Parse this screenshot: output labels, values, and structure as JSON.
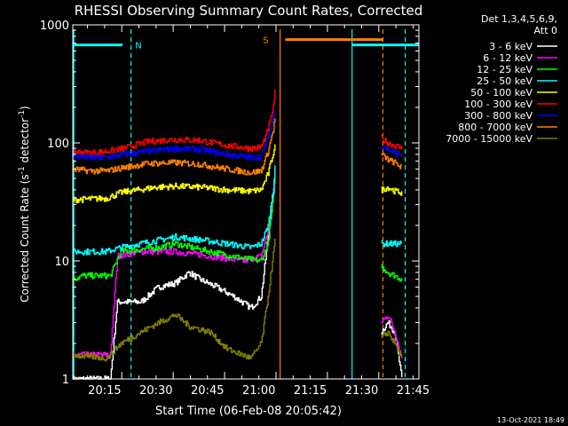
{
  "chart_data": {
    "type": "line",
    "title": "RHESSI Observing Summary Count Rates, Corrected",
    "xlabel": "Start Time (06-Feb-08 20:05:42)",
    "ylabel_main": "Corrected Count Rate (s",
    "ylabel_sup1": "-1",
    "ylabel_mid": " detector",
    "ylabel_sup2": "-1",
    "ylabel_end": ")",
    "yscale": "log",
    "ylim": [
      1,
      1000
    ],
    "y_ticks": [
      {
        "value": 1,
        "label": "1"
      },
      {
        "value": 10,
        "label": "10"
      },
      {
        "value": 100,
        "label": "100"
      },
      {
        "value": 1000,
        "label": "1000"
      }
    ],
    "xlim_minutes": [
      0,
      101
    ],
    "x_ticks": [
      {
        "minute": 9.3,
        "label": "20:15"
      },
      {
        "minute": 24.3,
        "label": "20:30"
      },
      {
        "minute": 39.3,
        "label": "20:45"
      },
      {
        "minute": 54.3,
        "label": "21:00"
      },
      {
        "minute": 69.3,
        "label": "21:15"
      },
      {
        "minute": 84.3,
        "label": "21:30"
      },
      {
        "minute": 99.3,
        "label": "21:45"
      }
    ],
    "legend_header": [
      "Det 1,3,4,5,6,9,",
      "Att 0"
    ],
    "legend_position": "right",
    "series": [
      {
        "name": "3 - 6 keV",
        "color": "#ffffff",
        "segments": [
          [
            [
              0,
              1
            ],
            [
              11,
              1
            ],
            [
              13,
              4.5
            ],
            [
              20,
              4.5
            ],
            [
              25,
              6
            ],
            [
              30,
              6.5
            ],
            [
              34,
              8
            ],
            [
              37,
              7
            ],
            [
              42,
              6
            ],
            [
              47,
              5
            ],
            [
              52,
              4
            ],
            [
              55,
              5
            ],
            [
              56.5,
              12
            ],
            [
              58,
              30
            ],
            [
              59,
              50
            ]
          ],
          [
            [
              90,
              2.5
            ],
            [
              92,
              3
            ],
            [
              94,
              2.5
            ],
            [
              96,
              1
            ]
          ]
        ]
      },
      {
        "name": "6 - 12 keV",
        "color": "#ff00ff",
        "segments": [
          [
            [
              0,
              1.6
            ],
            [
              11,
              1.6
            ],
            [
              13,
              11
            ],
            [
              20,
              12
            ],
            [
              30,
              12
            ],
            [
              40,
              11
            ],
            [
              50,
              10
            ],
            [
              55,
              11
            ],
            [
              57,
              18
            ],
            [
              58.5,
              40
            ],
            [
              59,
              55
            ]
          ],
          [
            [
              90,
              3
            ],
            [
              92,
              3.5
            ],
            [
              94,
              2.5
            ],
            [
              96,
              1.5
            ]
          ]
        ]
      },
      {
        "name": "12 - 25 keV",
        "color": "#00ff00",
        "segments": [
          [
            [
              0,
              7
            ],
            [
              3,
              7.5
            ],
            [
              11,
              7.5
            ],
            [
              14,
              12
            ],
            [
              25,
              13
            ],
            [
              30,
              14
            ],
            [
              40,
              12
            ],
            [
              50,
              10.5
            ],
            [
              55,
              10
            ],
            [
              57,
              14
            ],
            [
              58.5,
              35
            ],
            [
              59,
              60
            ]
          ],
          [
            [
              90,
              9
            ],
            [
              92,
              8
            ],
            [
              94,
              7.5
            ],
            [
              96,
              7
            ]
          ]
        ]
      },
      {
        "name": "25 - 50 keV",
        "color": "#00ffff",
        "segments": [
          [
            [
              0,
              12
            ],
            [
              10,
              12
            ],
            [
              14,
              13
            ],
            [
              25,
              15
            ],
            [
              30,
              16
            ],
            [
              38,
              15
            ],
            [
              45,
              14
            ],
            [
              52,
              13
            ],
            [
              55,
              14
            ],
            [
              57,
              20
            ],
            [
              58.5,
              40
            ],
            [
              59,
              65
            ]
          ],
          [
            [
              90,
              14
            ],
            [
              93,
              14
            ],
            [
              96,
              14
            ]
          ]
        ]
      },
      {
        "name": "50 - 100 keV",
        "color": "#ffff00",
        "segments": [
          [
            [
              0,
              33
            ],
            [
              10,
              34
            ],
            [
              14,
              38
            ],
            [
              24,
              42
            ],
            [
              30,
              43
            ],
            [
              38,
              42
            ],
            [
              45,
              40
            ],
            [
              52,
              39
            ],
            [
              55,
              40
            ],
            [
              57,
              55
            ],
            [
              59,
              95
            ]
          ],
          [
            [
              90,
              40
            ],
            [
              92,
              42
            ],
            [
              94,
              39
            ],
            [
              96,
              38
            ]
          ]
        ]
      },
      {
        "name": "100 - 300 keV",
        "color": "#ff0000",
        "segments": [
          [
            [
              0,
              85
            ],
            [
              5,
              82
            ],
            [
              10,
              85
            ],
            [
              15,
              90
            ],
            [
              22,
              103
            ],
            [
              30,
              107
            ],
            [
              37,
              105
            ],
            [
              45,
              95
            ],
            [
              52,
              90
            ],
            [
              55,
              92
            ],
            [
              57,
              130
            ],
            [
              58.5,
              200
            ],
            [
              59,
              280
            ]
          ],
          [
            [
              90,
              110
            ],
            [
              92,
              100
            ],
            [
              94,
              95
            ],
            [
              96,
              90
            ]
          ]
        ]
      },
      {
        "name": "300 - 800 keV",
        "color": "#0000ff",
        "segments": [
          [
            [
              0,
              77
            ],
            [
              5,
              75
            ],
            [
              10,
              75
            ],
            [
              15,
              80
            ],
            [
              22,
              85
            ],
            [
              30,
              90
            ],
            [
              37,
              88
            ],
            [
              45,
              80
            ],
            [
              52,
              75
            ],
            [
              55,
              77
            ],
            [
              57,
              110
            ],
            [
              58.5,
              160
            ],
            [
              59,
              200
            ]
          ],
          [
            [
              90,
              95
            ],
            [
              92,
              88
            ],
            [
              94,
              82
            ],
            [
              96,
              80
            ]
          ]
        ]
      },
      {
        "name": "800 - 7000 keV",
        "color": "#ff8000",
        "segments": [
          [
            [
              0,
              60
            ],
            [
              5,
              58
            ],
            [
              10,
              58
            ],
            [
              15,
              62
            ],
            [
              22,
              67
            ],
            [
              30,
              68
            ],
            [
              37,
              66
            ],
            [
              45,
              60
            ],
            [
              52,
              56
            ],
            [
              55,
              58
            ],
            [
              57,
              85
            ],
            [
              58.5,
              130
            ],
            [
              59,
              160
            ]
          ],
          [
            [
              90,
              80
            ],
            [
              92,
              72
            ],
            [
              94,
              68
            ],
            [
              96,
              62
            ]
          ]
        ]
      },
      {
        "name": "7000 - 15000 keV",
        "color": "#808000",
        "segments": [
          [
            [
              0,
              1.6
            ],
            [
              10,
              1.5
            ],
            [
              14,
              2
            ],
            [
              20,
              2.5
            ],
            [
              25,
              3
            ],
            [
              30,
              3.5
            ],
            [
              34,
              2.8
            ],
            [
              40,
              2.5
            ],
            [
              45,
              1.8
            ],
            [
              52,
              1.5
            ],
            [
              55,
              2
            ],
            [
              57,
              5
            ],
            [
              59,
              15
            ]
          ],
          [
            [
              90,
              2.2
            ],
            [
              92,
              2.5
            ],
            [
              94,
              2
            ],
            [
              96,
              1.5
            ]
          ]
        ]
      }
    ],
    "annotations": [
      {
        "label": "N",
        "color": "#00ffff"
      },
      {
        "label": "S",
        "color": "#ff8000"
      }
    ],
    "footer_date": "13-Oct-2021 18:49"
  }
}
